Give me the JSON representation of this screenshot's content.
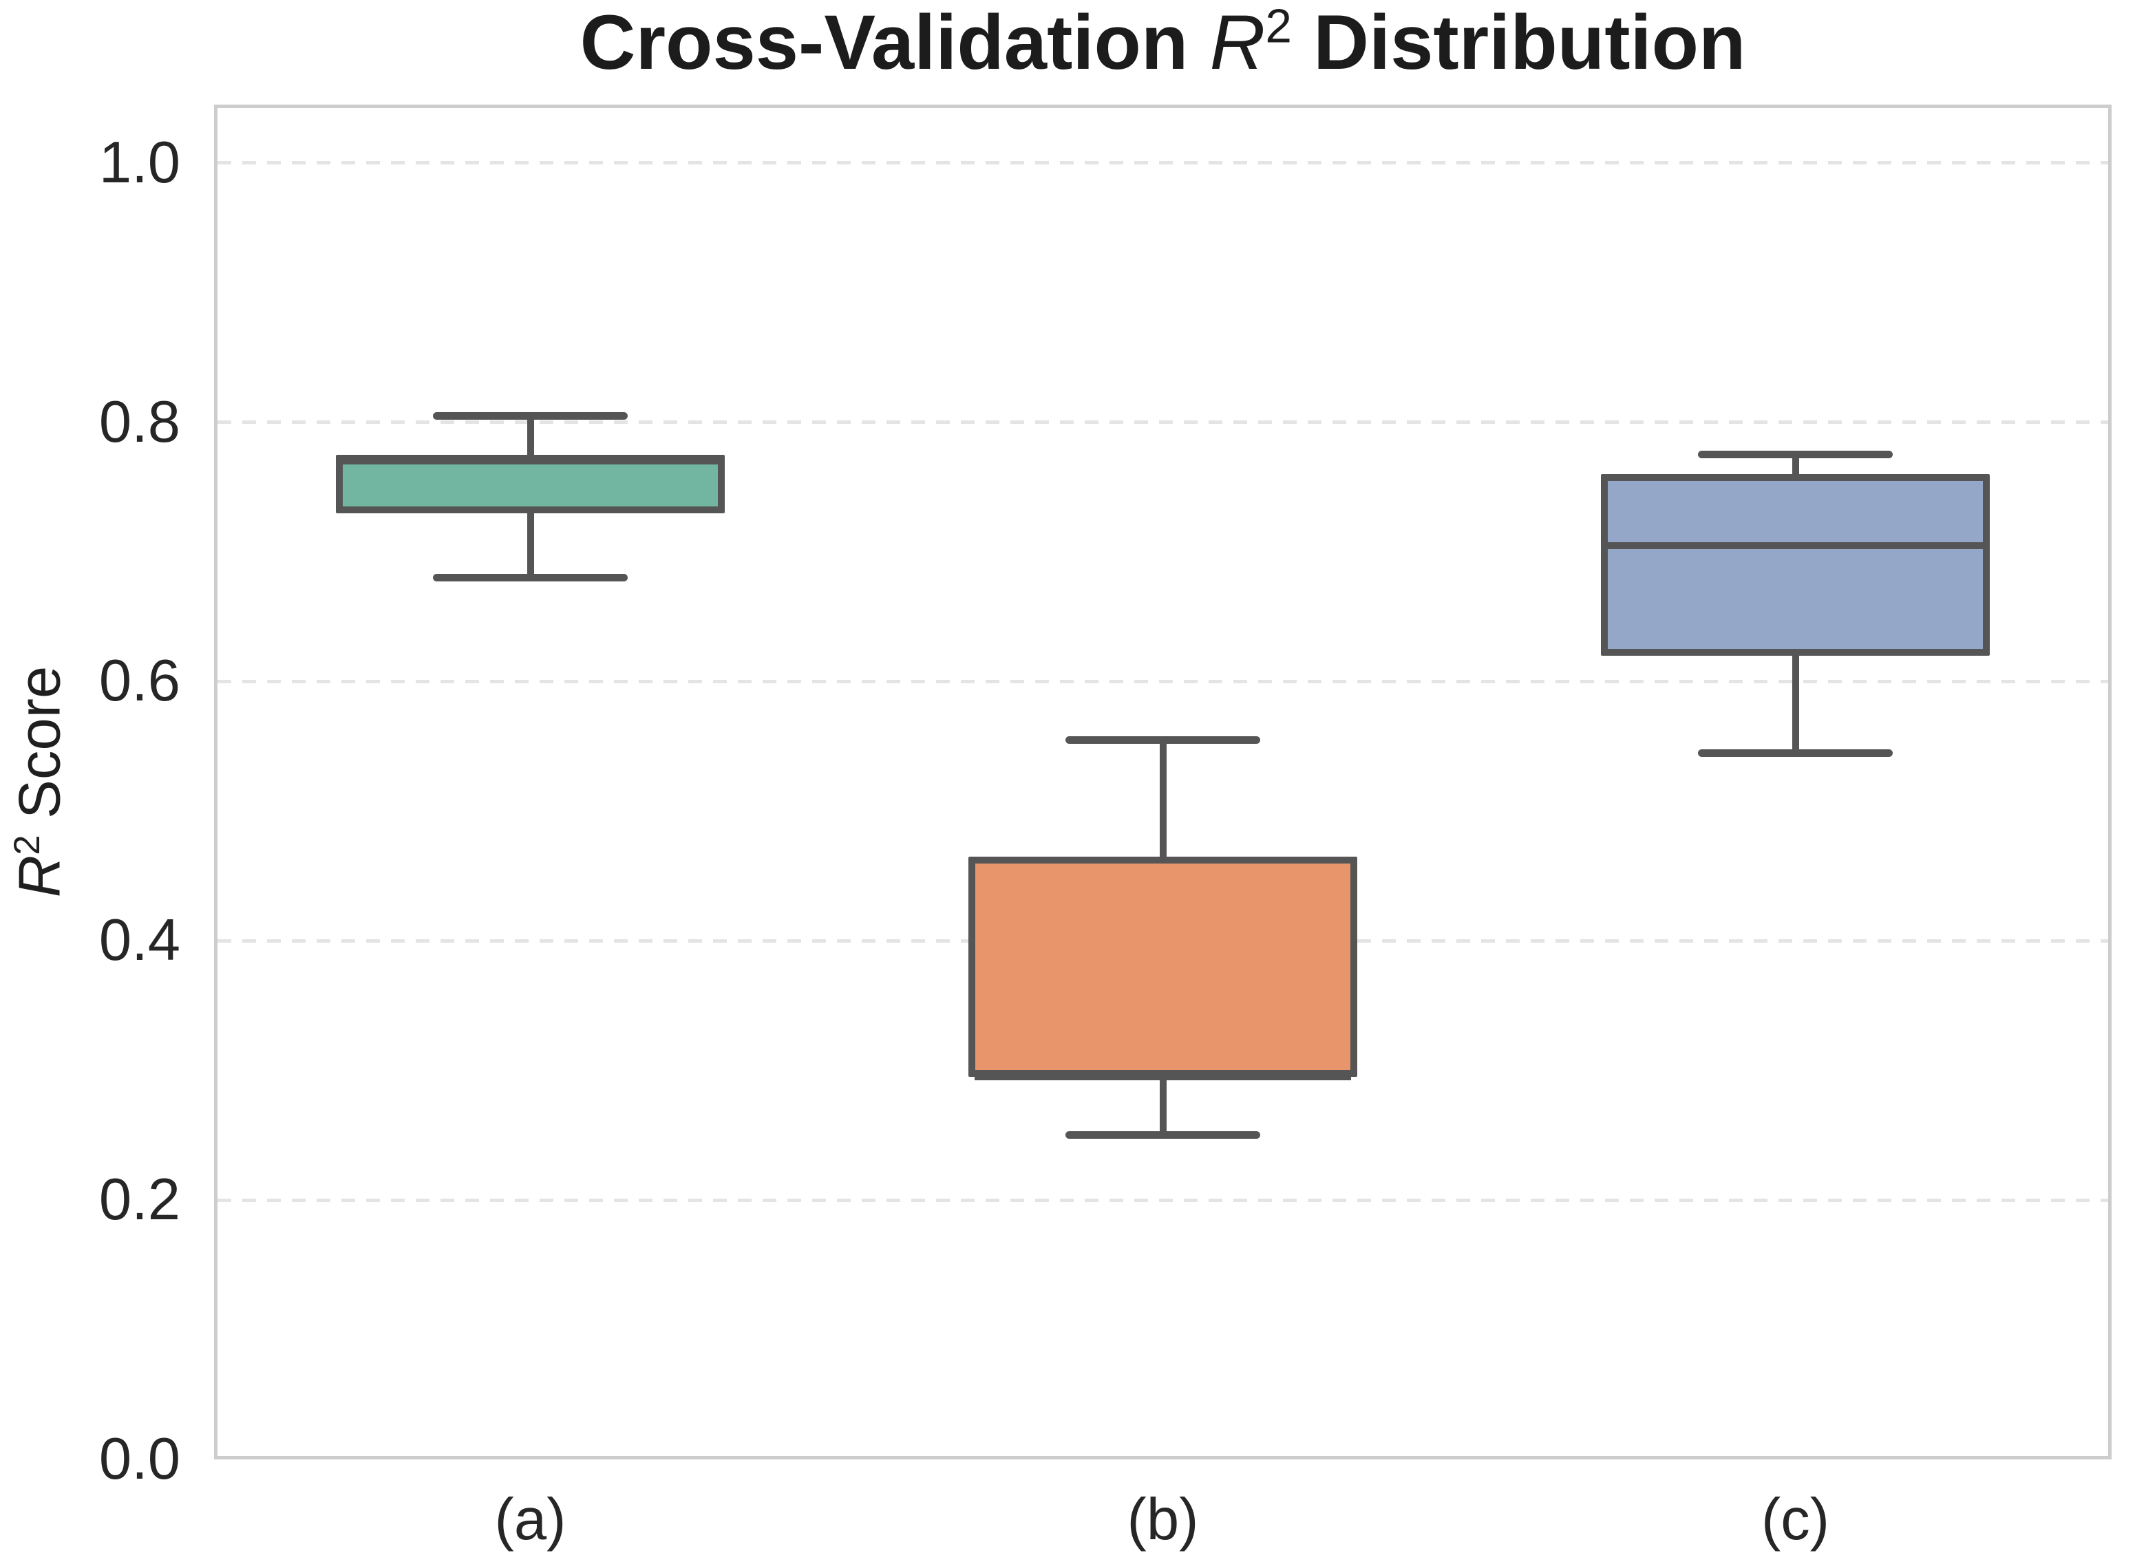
{
  "figure": {
    "title": {
      "prefix": "Cross-Validation ",
      "variable": "R",
      "superscript": "2",
      "suffix": " Distribution"
    },
    "y_axis": {
      "label": {
        "variable": "R",
        "superscript": "2",
        "suffix": " Score"
      },
      "tick_labels": [
        "1.0",
        "0.8",
        "0.6",
        "0.4",
        "0.2",
        "0.0"
      ],
      "tick_values": [
        1.0,
        0.8,
        0.6,
        0.4,
        0.2,
        0.0
      ]
    },
    "x_axis": {
      "tick_labels": [
        "(a)",
        "(b)",
        "(c)"
      ]
    }
  },
  "chart_data": {
    "type": "box",
    "title": "Cross-Validation R² Distribution",
    "xlabel": "",
    "ylabel": "R² Score",
    "categories": [
      "(a)",
      "(b)",
      "(c)"
    ],
    "ylim": [
      0,
      1.045
    ],
    "yticks": [
      0,
      0.2,
      0.4,
      0.6,
      0.8,
      1.0
    ],
    "grid": {
      "axis": "y",
      "style": "dashed",
      "color": "#e4e4e4"
    },
    "legend": "none",
    "style": {
      "line_color": "#555555",
      "spine_color": "#cdcdcd",
      "text_color": "#262626",
      "background": "#ffffff"
    },
    "series": [
      {
        "category": "(a)",
        "fill": "#72b5a1",
        "whisker_low": 0.68,
        "q1": 0.73,
        "median": 0.77,
        "q3": 0.775,
        "whisker_high": 0.805
      },
      {
        "category": "(b)",
        "fill": "#e8956b",
        "whisker_low": 0.25,
        "q1": 0.295,
        "median": 0.295,
        "q3": 0.465,
        "whisker_high": 0.555
      },
      {
        "category": "(c)",
        "fill": "#95a7c9",
        "whisker_low": 0.545,
        "q1": 0.62,
        "median": 0.705,
        "q3": 0.76,
        "whisker_high": 0.775
      }
    ]
  }
}
